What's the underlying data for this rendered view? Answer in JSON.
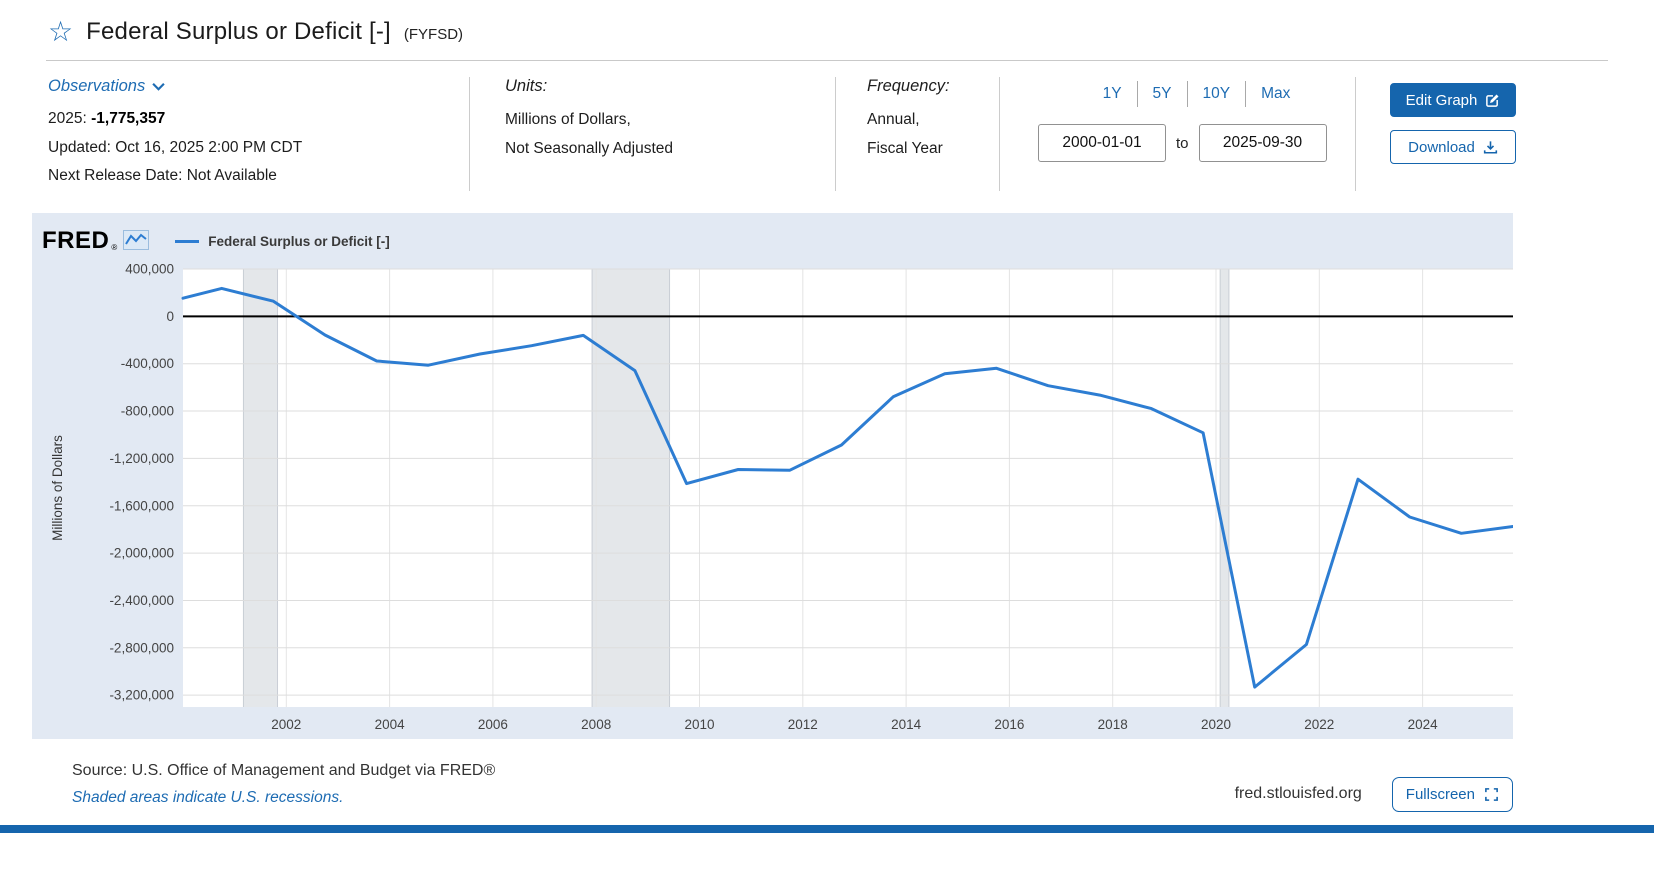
{
  "colors": {
    "link": "#1e6cb3",
    "button": "#1565ad",
    "line": "#2d7dd2",
    "chartbg": "#e2e9f3"
  },
  "header": {
    "title": "Federal Surplus or Deficit [-]",
    "series_id_label": "(FYFSD)"
  },
  "meta": {
    "observations": {
      "label": "Observations",
      "latest_label": "2025:",
      "latest_value": "-1,775,357",
      "updated": "Updated: Oct 16, 2025 2:00 PM CDT",
      "next_release": "Next Release Date: Not Available"
    },
    "units": {
      "label": "Units:",
      "line1": "Millions of Dollars,",
      "line2": "Not Seasonally Adjusted"
    },
    "frequency": {
      "label": "Frequency:",
      "line1": "Annual,",
      "line2": "Fiscal Year"
    },
    "range": {
      "presets": [
        "1Y",
        "5Y",
        "10Y",
        "Max"
      ],
      "start_date": "2000-01-01",
      "to_label": "to",
      "end_date": "2025-09-30"
    },
    "actions": {
      "edit_graph": "Edit Graph",
      "download": "Download"
    }
  },
  "chart": {
    "logo": "FRED",
    "logo_reg": "®",
    "legend": "Federal Surplus or Deficit [-]",
    "source_line": "Source: U.S. Office of Management and Budget via FRED®",
    "recession_note": "Shaded areas indicate U.S. recessions.",
    "site": "fred.stlouisfed.org",
    "fullscreen_label": "Fullscreen"
  },
  "chart_data": {
    "type": "line",
    "title": "Federal Surplus or Deficit [-]",
    "ylabel": "Millions of Dollars",
    "x_domain": [
      2000.0,
      2025.75
    ],
    "ylim": [
      -3300000,
      400000
    ],
    "y_ticks": [
      400000,
      0,
      -400000,
      -800000,
      -1200000,
      -1600000,
      -2000000,
      -2400000,
      -2800000,
      -3200000
    ],
    "x_ticks": [
      2002,
      2004,
      2006,
      2008,
      2010,
      2012,
      2014,
      2016,
      2018,
      2020,
      2022,
      2024
    ],
    "grid": true,
    "zero_line": true,
    "legend_position": "top-left",
    "recession_color": "#e4e7ea",
    "recessions": [
      [
        2001.17,
        2001.83
      ],
      [
        2007.92,
        2009.42
      ],
      [
        2020.08,
        2020.25
      ]
    ],
    "series": [
      {
        "name": "Federal Surplus or Deficit [-]",
        "color": "#2d7dd2",
        "points": [
          [
            2000.0,
            153268
          ],
          [
            2000.75,
            236241
          ],
          [
            2001.75,
            128236
          ],
          [
            2002.75,
            -157758
          ],
          [
            2003.75,
            -377585
          ],
          [
            2004.75,
            -412727
          ],
          [
            2005.75,
            -318346
          ],
          [
            2006.75,
            -248181
          ],
          [
            2007.75,
            -160701
          ],
          [
            2008.75,
            -458553
          ],
          [
            2009.75,
            -1412688
          ],
          [
            2010.75,
            -1294089
          ],
          [
            2011.75,
            -1299589
          ],
          [
            2012.75,
            -1086963
          ],
          [
            2013.75,
            -679545
          ],
          [
            2014.75,
            -484602
          ],
          [
            2015.75,
            -439086
          ],
          [
            2016.75,
            -585596
          ],
          [
            2017.75,
            -665446
          ],
          [
            2018.75,
            -779000
          ],
          [
            2019.75,
            -983593
          ],
          [
            2020.75,
            -3131917
          ],
          [
            2021.75,
            -2772178
          ],
          [
            2022.75,
            -1375389
          ],
          [
            2023.75,
            -1695224
          ],
          [
            2024.75,
            -1832816
          ],
          [
            2025.75,
            -1775357
          ]
        ]
      }
    ]
  }
}
